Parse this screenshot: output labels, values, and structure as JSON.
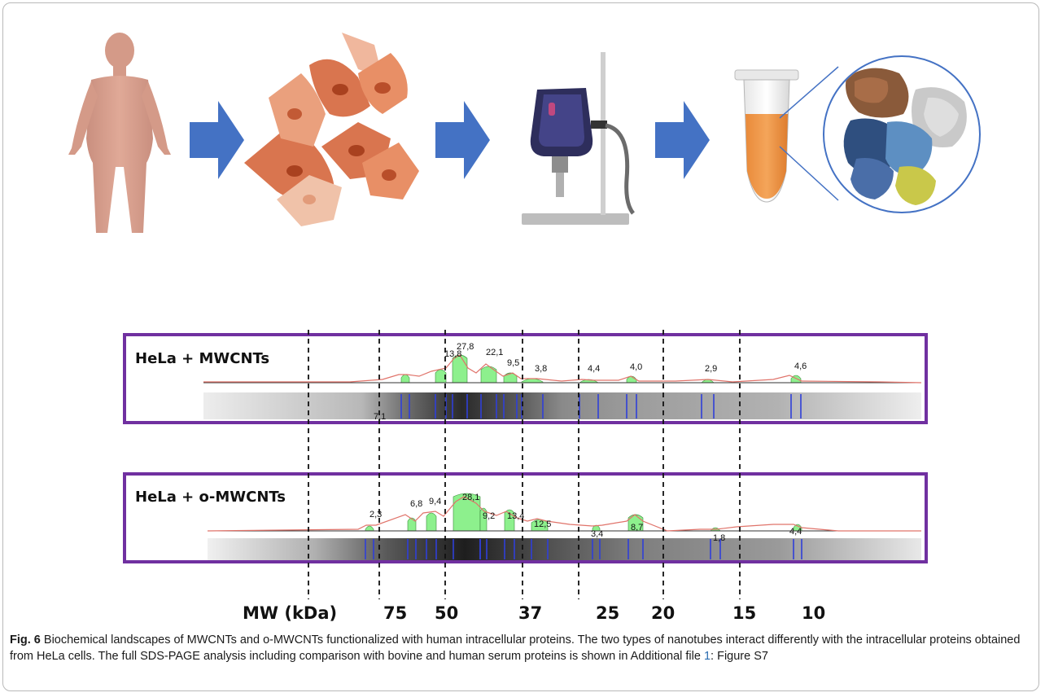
{
  "figure": {
    "caption": {
      "label": "Fig. 6",
      "text_before_link": "Biochemical landscapes of MWCNTs and o-MWCNTs functionalized with human intracellular proteins. The two types of nanotubes interact differently with the intracellular proteins obtained from HeLa cells. The full SDS-PAGE analysis including comparison with bovine and human serum proteins is shown in Additional file ",
      "link_text": "1",
      "text_after_link": ": Figure S7"
    },
    "illustration": {
      "steps": [
        "human-body-icon",
        "hela-cells-icon",
        "sonicator-icon",
        "tube-with-proteins-icon"
      ],
      "arrow_color": "#4472C4"
    },
    "mw_axis": {
      "label": "MW (kDa)",
      "markers": [
        "75",
        "50",
        "37",
        "25",
        "20",
        "15",
        "10"
      ]
    },
    "panels": [
      {
        "title": "HeLa + MWCNTs",
        "peaks": [
          {
            "label": "7,1"
          },
          {
            "label": "13,8"
          },
          {
            "label": "27,8"
          },
          {
            "label": "22,1"
          },
          {
            "label": "9,5"
          },
          {
            "label": "3,8"
          },
          {
            "label": "4,4"
          },
          {
            "label": "4,0"
          },
          {
            "label": "2,9"
          },
          {
            "label": "4,6"
          }
        ]
      },
      {
        "title": "HeLa + o-MWCNTs",
        "peaks": [
          {
            "label": "2,3"
          },
          {
            "label": "6,8"
          },
          {
            "label": "9,4"
          },
          {
            "label": "28,1"
          },
          {
            "label": "9,2"
          },
          {
            "label": "13,4"
          },
          {
            "label": "12,5"
          },
          {
            "label": "3,4"
          },
          {
            "label": "8,7"
          },
          {
            "label": "1,8"
          },
          {
            "label": "4,4"
          }
        ]
      }
    ],
    "colors": {
      "panel_border": "#7030A0",
      "peak_fill": "#8DF08D",
      "profile_line": "#E0736A",
      "band_marker": "#2F3FD8"
    }
  }
}
